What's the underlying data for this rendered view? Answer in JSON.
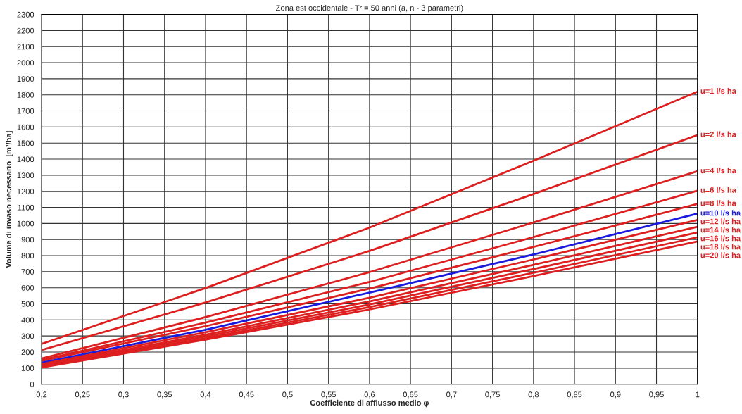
{
  "chart_data": {
    "type": "line",
    "title": "Zona est occidentale - Tr = 50 anni (a, n - 3 parametri)",
    "xlabel": "Coefficiente di afflusso medio φ",
    "ylabel": "Volume di invaso necessario  [m³/ha]",
    "x": [
      0.2,
      0.4,
      0.6,
      0.8,
      1.0
    ],
    "xlim": [
      0.2,
      1.0
    ],
    "xticks": [
      {
        "value": 0.2,
        "label": "0,2"
      },
      {
        "value": 0.25,
        "label": "0,25"
      },
      {
        "value": 0.3,
        "label": "0,3"
      },
      {
        "value": 0.35,
        "label": "0,35"
      },
      {
        "value": 0.4,
        "label": "0,4"
      },
      {
        "value": 0.45,
        "label": "0,45"
      },
      {
        "value": 0.5,
        "label": "0,5"
      },
      {
        "value": 0.55,
        "label": "0,55"
      },
      {
        "value": 0.6,
        "label": "0,6"
      },
      {
        "value": 0.65,
        "label": "0,65"
      },
      {
        "value": 0.7,
        "label": "0,7"
      },
      {
        "value": 0.75,
        "label": "0,75"
      },
      {
        "value": 0.8,
        "label": "0,8"
      },
      {
        "value": 0.85,
        "label": "0,85"
      },
      {
        "value": 0.9,
        "label": "0,9"
      },
      {
        "value": 0.95,
        "label": "0,95"
      },
      {
        "value": 1.0,
        "label": "1"
      }
    ],
    "ylim": [
      0,
      2300
    ],
    "yticks": [
      0,
      100,
      200,
      300,
      400,
      500,
      600,
      700,
      800,
      900,
      1000,
      1100,
      1200,
      1300,
      1400,
      1500,
      1600,
      1700,
      1800,
      1900,
      2000,
      2100,
      2200,
      2300
    ],
    "grid": true,
    "legend": false,
    "marker": "none",
    "line_style": "solid",
    "series": [
      {
        "name": "u=1 l/s ha",
        "color": "#dd1f1f",
        "values": [
          251,
          598,
          974,
          1390,
          1820
        ]
      },
      {
        "name": "u=2 l/s ha",
        "color": "#dd1f1f",
        "values": [
          212,
          508,
          829,
          1183,
          1550
        ]
      },
      {
        "name": "u=4 l/s ha",
        "color": "#dd1f1f",
        "values": [
          160,
          417,
          697,
          1006,
          1325
        ]
      },
      {
        "name": "u=6 l/s ha",
        "color": "#dd1f1f",
        "values": [
          150,
          383,
          636,
          915,
          1204
        ]
      },
      {
        "name": "u=8 l/s ha",
        "color": "#dd1f1f",
        "values": [
          145,
          361,
          595,
          854,
          1122
        ]
      },
      {
        "name": "u=10 l/s ha",
        "color": "#1a1adf",
        "values": [
          134,
          339,
          570,
          807,
          1061
        ]
      },
      {
        "name": "u=12 l/s ha",
        "color": "#dd1f1f",
        "values": [
          125,
          323,
          538,
          776,
          1022
        ]
      },
      {
        "name": "u=14 l/s ha",
        "color": "#dd1f1f",
        "values": [
          118,
          308,
          515,
          743,
          979
        ]
      },
      {
        "name": "u=16 l/s ha",
        "color": "#dd1f1f",
        "values": [
          113,
          297,
          496,
          716,
          944
        ]
      },
      {
        "name": "u=18 l/s ha",
        "color": "#dd1f1f",
        "values": [
          108,
          286,
          480,
          693,
          914
        ]
      },
      {
        "name": "u=20 l/s ha",
        "color": "#dd1f1f",
        "values": [
          104,
          277,
          465,
          673,
          888
        ]
      }
    ]
  }
}
